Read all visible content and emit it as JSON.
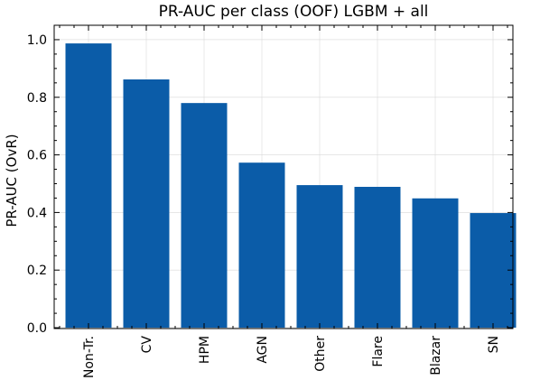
{
  "chart_data": {
    "type": "bar",
    "title": "PR-AUC per class (OOF) LGBM + all",
    "xlabel": "",
    "ylabel": "PR-AUC (OvR)",
    "categories": [
      "Non-Tr.",
      "CV",
      "HPM",
      "AGN",
      "Other",
      "Flare",
      "Blazar",
      "SN"
    ],
    "values": [
      0.987,
      0.862,
      0.78,
      0.573,
      0.495,
      0.489,
      0.449,
      0.398
    ],
    "ylim": [
      0,
      1.0
    ],
    "yticks": [
      "0.0",
      "0.2",
      "0.4",
      "0.6",
      "0.8",
      "1.0"
    ],
    "grid": true,
    "bar_color": "#0b5ca8"
  }
}
